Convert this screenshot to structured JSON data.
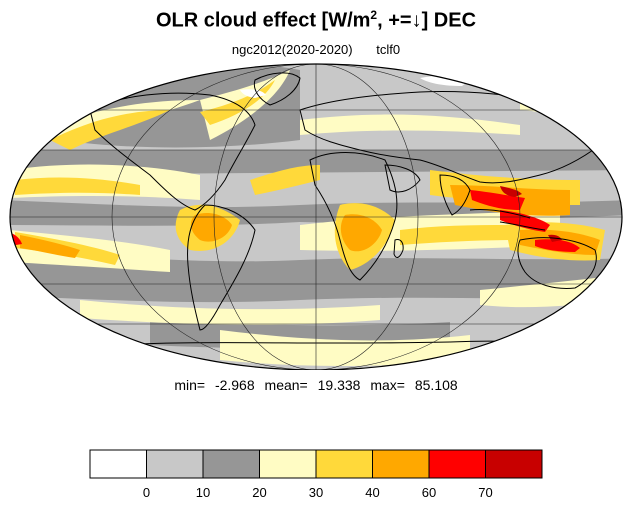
{
  "title": {
    "main": "OLR cloud effect [W/m",
    "sup": "2",
    "tail": ", +=↓]  DEC"
  },
  "subtitle": {
    "run": "ngc2012(2020-2020)",
    "var": "tclf0"
  },
  "stats": {
    "min_label": "min=",
    "min_value": "-2.968",
    "mean_label": "mean=",
    "mean_value": "19.338",
    "max_label": "max=",
    "max_value": "85.108"
  },
  "colorbar": {
    "colors": [
      "#ffffff",
      "#c8c8c8",
      "#969696",
      "#fffcc4",
      "#ffd93a",
      "#ffa800",
      "#ff0000",
      "#c80000"
    ],
    "tick_labels": [
      "0",
      "10",
      "20",
      "30",
      "40",
      "60",
      "70"
    ]
  },
  "map": {
    "projection": "Mollweide",
    "ocean_default_color": "#c8c8c8",
    "coastline_color": "#000000",
    "grid_color": "#222222"
  }
}
